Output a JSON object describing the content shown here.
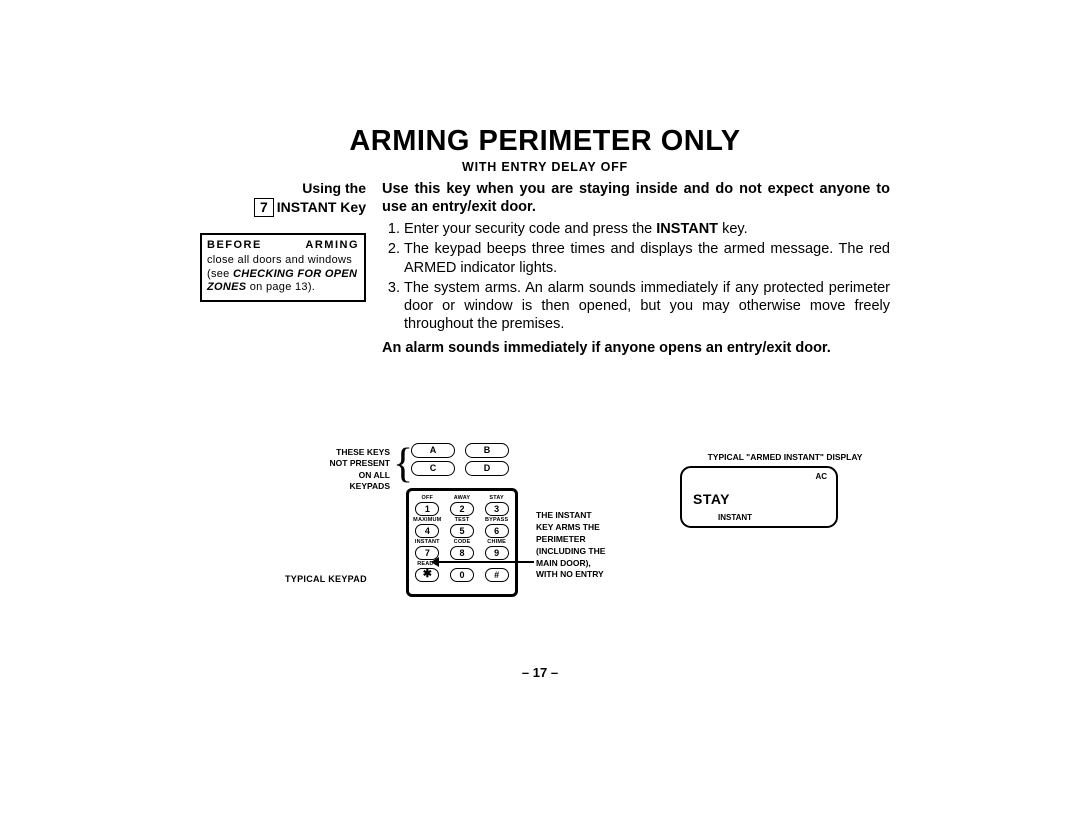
{
  "title": "ARMING PERIMETER ONLY",
  "subtitle": "WITH ENTRY DELAY OFF",
  "left": {
    "using_line1": "Using the",
    "using_num": "7",
    "using_line2": "INSTANT Key",
    "before_hdr": "BEFORE ARMING",
    "before_line1": "close all doors and windows",
    "before_line2a": "(see ",
    "before_line2b_em": "CHECKING FOR OPEN ZONES",
    "before_line2c": " on page 13)."
  },
  "intro": "Use this key when you are staying inside and do not expect anyone to use an entry/exit door.",
  "steps": [
    {
      "pre": "Enter your security code and press the ",
      "bold": "INSTANT",
      "post": " key."
    },
    {
      "pre": "The keypad beeps three times and displays the armed message. The red ARMED indicator lights.",
      "bold": "",
      "post": ""
    },
    {
      "pre": "The system arms. An alarm sounds immediately if any protected perimeter door or window is then opened, but you may otherwise move freely throughout the premises.",
      "bold": "",
      "post": ""
    }
  ],
  "closing": "An alarm sounds immediately if anyone opens an entry/exit door.",
  "page_num": "– 17 –",
  "diagram": {
    "note_left": "THESE KEYS\nNOT PRESENT\nON ALL\nKEYPADS",
    "typical_label": "TYPICAL KEYPAD",
    "abcd": [
      "A",
      "B",
      "C",
      "D"
    ],
    "rows": [
      {
        "labels": [
          "OFF",
          "AWAY",
          "STAY"
        ],
        "keys": [
          "1",
          "2",
          "3"
        ]
      },
      {
        "labels": [
          "MAXIMUM",
          "TEST",
          "BYPASS"
        ],
        "keys": [
          "4",
          "5",
          "6"
        ]
      },
      {
        "labels": [
          "INSTANT",
          "CODE",
          "CHIME"
        ],
        "keys": [
          "7",
          "8",
          "9"
        ]
      },
      {
        "labels": [
          "READY",
          "",
          ""
        ],
        "keys": [
          "✱",
          "0",
          "#"
        ]
      }
    ],
    "note_mid": "THE INSTANT\nKEY ARMS THE\nPERIMETER\n(INCLUDING THE\nMAIN DOOR),\nWITH NO ENTRY",
    "display_title": "TYPICAL \"ARMED INSTANT\" DISPLAY",
    "display_ac": "AC",
    "display_stay": "STAY",
    "display_instant": "INSTANT"
  }
}
